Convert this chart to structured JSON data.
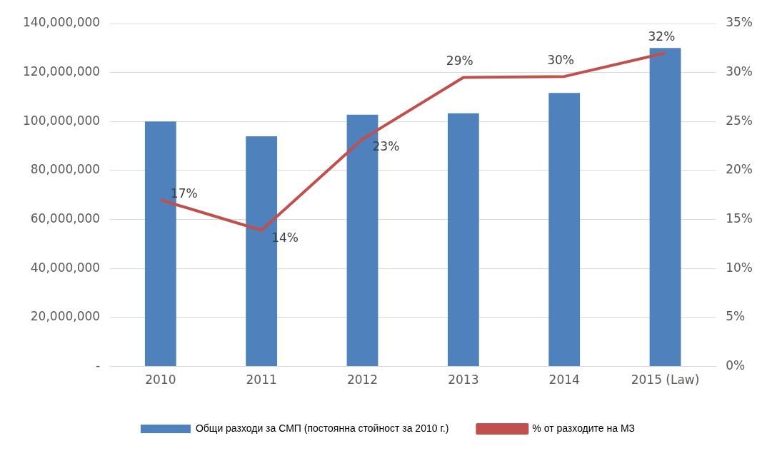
{
  "chart_data": {
    "type": "bar",
    "categories": [
      "2010",
      "2011",
      "2012",
      "2013",
      "2014",
      "2015 (Law)"
    ],
    "series": [
      {
        "name": "Общи разходи за СМП (постоянна стойност за 2010 г.)",
        "color": "#4f81bd",
        "values": [
          100000000,
          94000000,
          102800000,
          103400000,
          111700000,
          130000000
        ]
      },
      {
        "name": "% от разходите на МЗ",
        "type": "line",
        "axis": "y2",
        "color": "#c0504d",
        "marker": "none",
        "values": [
          17,
          13.9,
          23.2,
          29.5,
          29.6,
          32
        ],
        "value_labels": [
          "17%",
          "14%",
          "23%",
          "29%",
          "30%",
          "32%"
        ]
      }
    ],
    "ylim": [
      0,
      140000000
    ],
    "yticks": [
      {
        "value": 0,
        "label": "-"
      },
      {
        "value": 20000000,
        "label": "20,000,000"
      },
      {
        "value": 40000000,
        "label": "40,000,000"
      },
      {
        "value": 60000000,
        "label": "60,000,000"
      },
      {
        "value": 80000000,
        "label": "80,000,000"
      },
      {
        "value": 100000000,
        "label": "100,000,000"
      },
      {
        "value": 120000000,
        "label": "120,000,000"
      },
      {
        "value": 140000000,
        "label": "140,000,000"
      }
    ],
    "y2lim": [
      0,
      35
    ],
    "y2ticks": [
      {
        "value": 0,
        "label": "0%"
      },
      {
        "value": 5,
        "label": "5%"
      },
      {
        "value": 10,
        "label": "10%"
      },
      {
        "value": 15,
        "label": "15%"
      },
      {
        "value": 20,
        "label": "20%"
      },
      {
        "value": 25,
        "label": "25%"
      },
      {
        "value": 30,
        "label": "30%"
      },
      {
        "value": 35,
        "label": "35%"
      }
    ],
    "grid": "y",
    "legend": "bottom"
  }
}
